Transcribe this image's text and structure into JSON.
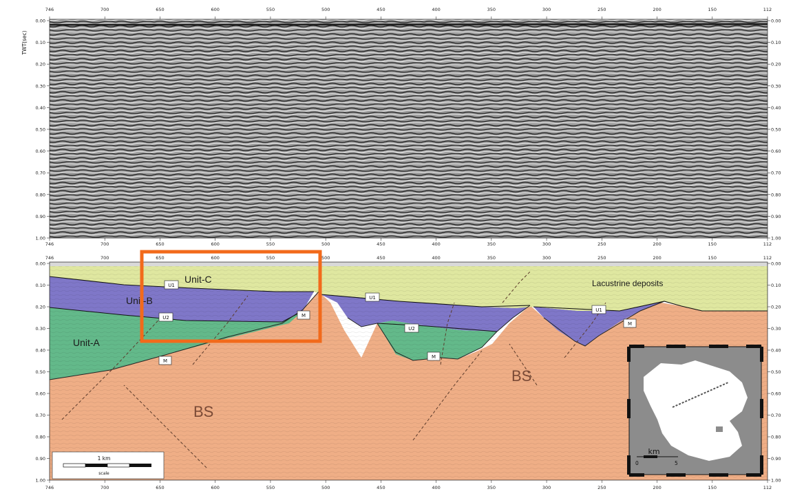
{
  "axis": {
    "ylabel": "TWT(sec)",
    "top_ticks": [
      "746",
      "700",
      "650",
      "600",
      "550",
      "500",
      "450",
      "400",
      "350",
      "300",
      "250",
      "200",
      "150",
      "112"
    ],
    "bottom_ticks": [
      "746",
      "700",
      "650",
      "600",
      "550",
      "500",
      "450",
      "400",
      "350",
      "300",
      "250",
      "200",
      "150",
      "112"
    ],
    "y_ticks": [
      "0.00",
      "0.10",
      "0.20",
      "0.30",
      "0.40",
      "0.50",
      "0.60",
      "0.70",
      "0.80",
      "0.90",
      "1.00"
    ]
  },
  "units": {
    "unit_c": "Unit-C",
    "unit_b": "Unit-B",
    "unit_a": "Unit-A",
    "lacustrine": "Lacustrine deposits",
    "bs_left": "BS",
    "bs_right": "BS"
  },
  "horizons": {
    "u1": "U1",
    "u2": "U2",
    "m": "M"
  },
  "scale_bar": {
    "label": "1 km",
    "sublabel": "scale"
  },
  "inset": {
    "label": "km",
    "tick_left": "0",
    "tick_right": "5"
  },
  "colors": {
    "unit_c": "#dfe7a0",
    "unit_b": "#7f77c8",
    "unit_a": "#63b98a",
    "bs": "#efae86",
    "highlight": "#f26a1b",
    "inset_bg": "#8c8c8c"
  }
}
